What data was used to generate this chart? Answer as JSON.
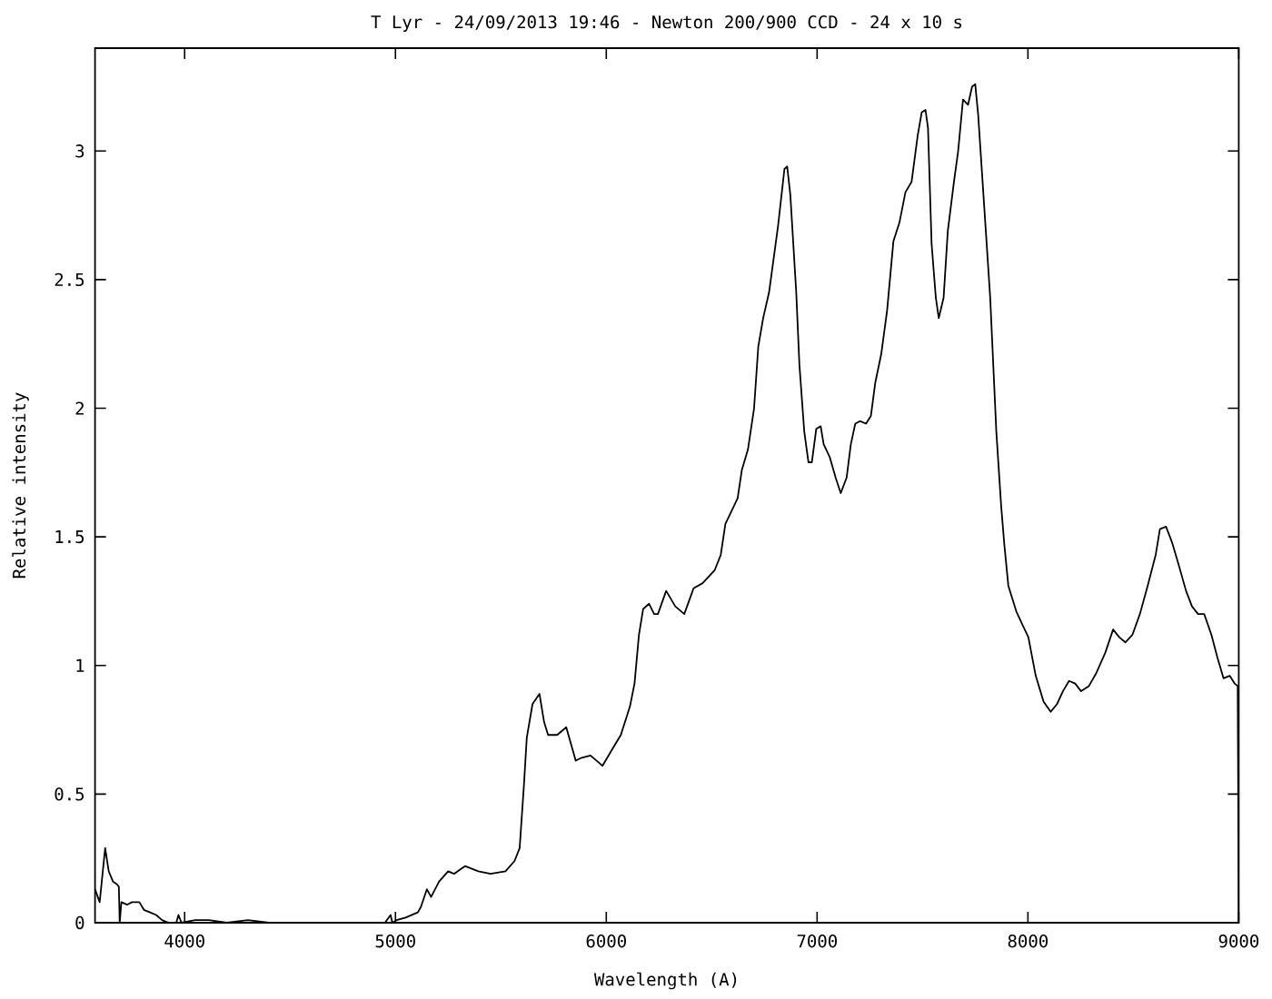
{
  "chart_data": {
    "type": "line",
    "title": "T Lyr - 24/09/2013 19:46 - Newton 200/900 CCD - 24 x 10 s",
    "xlabel": "Wavelength (A)",
    "ylabel": "Relative intensity",
    "x": [
      3575,
      3597,
      3623,
      3640,
      3660,
      3678,
      3688,
      3692,
      3700,
      3727,
      3750,
      3785,
      3807,
      3836,
      3865,
      3893,
      3924,
      3960,
      3971,
      3985,
      4050,
      4115,
      4200,
      4300,
      4400,
      4600,
      4800,
      4950,
      4977,
      4985,
      5005,
      5048,
      5106,
      5120,
      5149,
      5169,
      5207,
      5250,
      5278,
      5330,
      5393,
      5451,
      5522,
      5565,
      5589,
      5609,
      5623,
      5650,
      5683,
      5705,
      5724,
      5767,
      5810,
      5855,
      5880,
      5925,
      5968,
      5982,
      6025,
      6069,
      6112,
      6134,
      6155,
      6175,
      6203,
      6227,
      6245,
      6284,
      6327,
      6370,
      6414,
      6457,
      6514,
      6543,
      6565,
      6600,
      6623,
      6643,
      6672,
      6701,
      6721,
      6744,
      6772,
      6815,
      6845,
      6858,
      6873,
      6901,
      6916,
      6939,
      6959,
      6975,
      6996,
      7017,
      7031,
      7060,
      7088,
      7112,
      7140,
      7160,
      7181,
      7203,
      7232,
      7255,
      7276,
      7304,
      7332,
      7362,
      7390,
      7419,
      7448,
      7477,
      7496,
      7514,
      7526,
      7543,
      7563,
      7577,
      7600,
      7620,
      7649,
      7669,
      7692,
      7716,
      7735,
      7750,
      7764,
      7793,
      7821,
      7850,
      7873,
      7888,
      7907,
      7945,
      7979,
      8002,
      8037,
      8074,
      8108,
      8138,
      8166,
      8195,
      8224,
      8252,
      8289,
      8324,
      8367,
      8404,
      8433,
      8462,
      8496,
      8531,
      8568,
      8606,
      8626,
      8655,
      8683,
      8712,
      8750,
      8778,
      8807,
      8836,
      8870,
      8899,
      8928,
      8957,
      8980,
      8995,
      9000
    ],
    "values": [
      0.13,
      0.08,
      0.29,
      0.2,
      0.16,
      0.15,
      0.14,
      0,
      0.08,
      0.07,
      0.08,
      0.08,
      0.05,
      0.04,
      0.03,
      0.01,
      0,
      0,
      0.03,
      0,
      0.01,
      0.01,
      0,
      0.01,
      0,
      0,
      0,
      0,
      0.03,
      0,
      0.01,
      0.02,
      0.04,
      0.06,
      0.13,
      0.1,
      0.16,
      0.2,
      0.19,
      0.22,
      0.2,
      0.19,
      0.2,
      0.24,
      0.29,
      0.53,
      0.72,
      0.85,
      0.89,
      0.78,
      0.73,
      0.73,
      0.76,
      0.63,
      0.64,
      0.65,
      0.62,
      0.61,
      0.67,
      0.73,
      0.84,
      0.93,
      1.12,
      1.22,
      1.24,
      1.2,
      1.2,
      1.29,
      1.23,
      1.2,
      1.3,
      1.32,
      1.37,
      1.43,
      1.55,
      1.61,
      1.65,
      1.76,
      1.84,
      2,
      2.24,
      2.35,
      2.45,
      2.71,
      2.93,
      2.94,
      2.83,
      2.45,
      2.17,
      1.91,
      1.79,
      1.79,
      1.92,
      1.93,
      1.86,
      1.81,
      1.73,
      1.67,
      1.73,
      1.86,
      1.94,
      1.95,
      1.94,
      1.97,
      2.1,
      2.21,
      2.38,
      2.65,
      2.72,
      2.84,
      2.88,
      3.06,
      3.15,
      3.16,
      3.09,
      2.64,
      2.43,
      2.35,
      2.43,
      2.69,
      2.88,
      3,
      3.2,
      3.18,
      3.25,
      3.26,
      3.14,
      2.78,
      2.43,
      1.91,
      1.62,
      1.47,
      1.31,
      1.21,
      1.15,
      1.11,
      0.96,
      0.86,
      0.82,
      0.85,
      0.9,
      0.94,
      0.93,
      0.9,
      0.92,
      0.97,
      1.05,
      1.14,
      1.11,
      1.09,
      1.12,
      1.2,
      1.31,
      1.43,
      1.53,
      1.54,
      1.48,
      1.4,
      1.29,
      1.23,
      1.2,
      1.2,
      1.12,
      1.03,
      0.95,
      0.96,
      0.93,
      0.92,
      0
    ],
    "color": "#000000",
    "xlim": [
      3575,
      9000
    ],
    "ylim": [
      0,
      3.4
    ],
    "xticks": [
      4000,
      5000,
      6000,
      7000,
      8000,
      9000
    ],
    "yticks": [
      0,
      0.5,
      1,
      1.5,
      2,
      2.5,
      3
    ],
    "marker": "none",
    "line_style": "solid"
  }
}
